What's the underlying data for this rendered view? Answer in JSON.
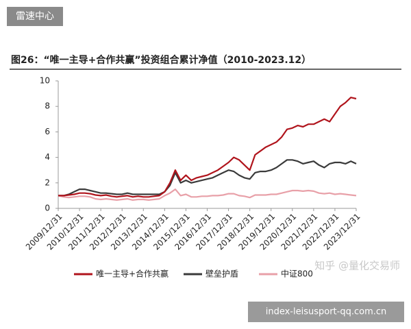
{
  "badge": "雷速中心",
  "watermark": "知乎 @量化交易师",
  "url": "index-leisusport-qq.com.cn",
  "chart_data": {
    "type": "line",
    "title": "图26：“唯一主导+合作共赢”投资组合累计净值（2010-2023.12）",
    "categories": [
      "2009/12/31",
      null,
      null,
      null,
      "2010/12/31",
      null,
      null,
      null,
      "2011/12/31",
      null,
      null,
      null,
      "2012/12/31",
      null,
      null,
      null,
      "2013/12/31",
      null,
      null,
      null,
      "2014/12/31",
      null,
      null,
      null,
      "2015/12/31",
      null,
      null,
      null,
      "2016/12/31",
      null,
      null,
      null,
      "2017/12/31",
      null,
      null,
      null,
      "2018/12/31",
      null,
      null,
      null,
      "2019/12/31",
      null,
      null,
      null,
      "2020/12/31",
      null,
      null,
      null,
      "2021/12/31",
      null,
      null,
      null,
      "2022/12/31",
      null,
      null,
      null,
      "2023/12/31"
    ],
    "series": [
      {
        "name": "唯一主导+合作共赢",
        "color": "#b0141c",
        "values": [
          1.0,
          1.0,
          1.05,
          1.1,
          1.2,
          1.2,
          1.15,
          1.05,
          1.0,
          1.05,
          0.95,
          0.9,
          0.95,
          1.0,
          0.9,
          0.95,
          0.9,
          0.9,
          0.95,
          1.0,
          1.3,
          2.0,
          3.0,
          2.2,
          2.6,
          2.2,
          2.4,
          2.5,
          2.6,
          2.8,
          3.0,
          3.3,
          3.6,
          4.0,
          3.8,
          3.4,
          3.0,
          4.2,
          4.5,
          4.8,
          5.0,
          5.2,
          5.6,
          6.2,
          6.3,
          6.5,
          6.4,
          6.6,
          6.6,
          6.8,
          7.0,
          6.8,
          7.4,
          8.0,
          8.3,
          8.7,
          8.6
        ]
      },
      {
        "name": "壁垒护盾",
        "color": "#3a3a3a",
        "values": [
          1.0,
          1.0,
          1.1,
          1.3,
          1.5,
          1.5,
          1.4,
          1.3,
          1.2,
          1.2,
          1.15,
          1.1,
          1.1,
          1.2,
          1.1,
          1.1,
          1.1,
          1.1,
          1.1,
          1.1,
          1.3,
          1.8,
          2.8,
          2.0,
          2.2,
          2.0,
          2.1,
          2.2,
          2.3,
          2.4,
          2.6,
          2.8,
          3.0,
          2.9,
          2.6,
          2.4,
          2.3,
          2.8,
          2.9,
          2.9,
          3.0,
          3.2,
          3.5,
          3.8,
          3.8,
          3.7,
          3.5,
          3.6,
          3.7,
          3.4,
          3.2,
          3.5,
          3.6,
          3.6,
          3.5,
          3.7,
          3.5
        ]
      },
      {
        "name": "中证800",
        "color": "#e8a0a8",
        "values": [
          1.0,
          0.9,
          0.85,
          0.9,
          0.95,
          0.95,
          0.9,
          0.75,
          0.7,
          0.75,
          0.7,
          0.65,
          0.7,
          0.75,
          0.65,
          0.7,
          0.7,
          0.65,
          0.7,
          0.75,
          1.0,
          1.2,
          1.5,
          1.0,
          1.1,
          0.9,
          0.9,
          0.95,
          0.95,
          1.0,
          1.0,
          1.05,
          1.15,
          1.15,
          1.0,
          0.95,
          0.85,
          1.05,
          1.05,
          1.05,
          1.1,
          1.1,
          1.2,
          1.3,
          1.4,
          1.4,
          1.35,
          1.4,
          1.35,
          1.2,
          1.15,
          1.2,
          1.1,
          1.15,
          1.1,
          1.05,
          1.0
        ]
      }
    ],
    "ylim": [
      0,
      10
    ],
    "yticks": [
      0,
      2,
      4,
      6,
      8,
      10
    ],
    "grid": false,
    "legend": "bottom"
  }
}
